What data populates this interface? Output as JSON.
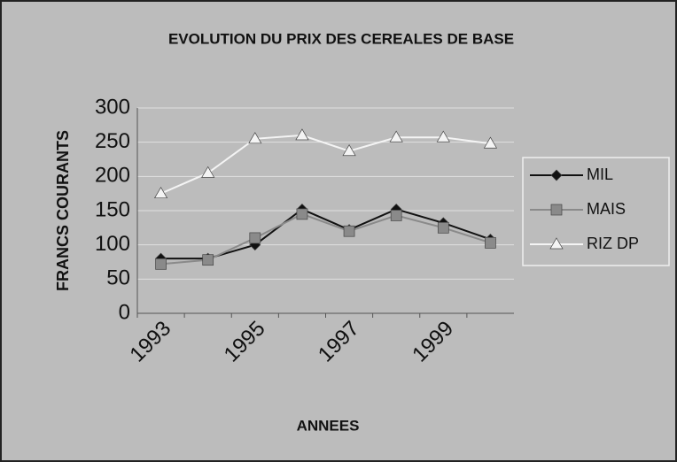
{
  "chart_data": {
    "type": "line",
    "title": "EVOLUTION DU PRIX DES CEREALES DE BASE",
    "x_label": "ANNEES",
    "y_label": "FRANCS COURANTS",
    "categories": [
      "1993",
      null,
      "1995",
      null,
      "1997",
      null,
      "1999",
      null
    ],
    "series": [
      {
        "name": "MIL",
        "color": "#111111",
        "marker": "diamond",
        "values": [
          80,
          80,
          100,
          152,
          122,
          152,
          132,
          108
        ]
      },
      {
        "name": "MAIS",
        "color": "#8a8a8a",
        "marker": "square",
        "values": [
          72,
          78,
          110,
          145,
          120,
          143,
          125,
          103
        ]
      },
      {
        "name": "RIZ DP",
        "color": "#f4f4f4",
        "marker": "triangle",
        "values": [
          175,
          205,
          255,
          260,
          237,
          257,
          257,
          248
        ]
      }
    ],
    "ylim": [
      0,
      300
    ],
    "yticks": [
      0,
      50,
      100,
      150,
      200,
      250,
      300
    ],
    "grid": true,
    "legend": "right"
  }
}
